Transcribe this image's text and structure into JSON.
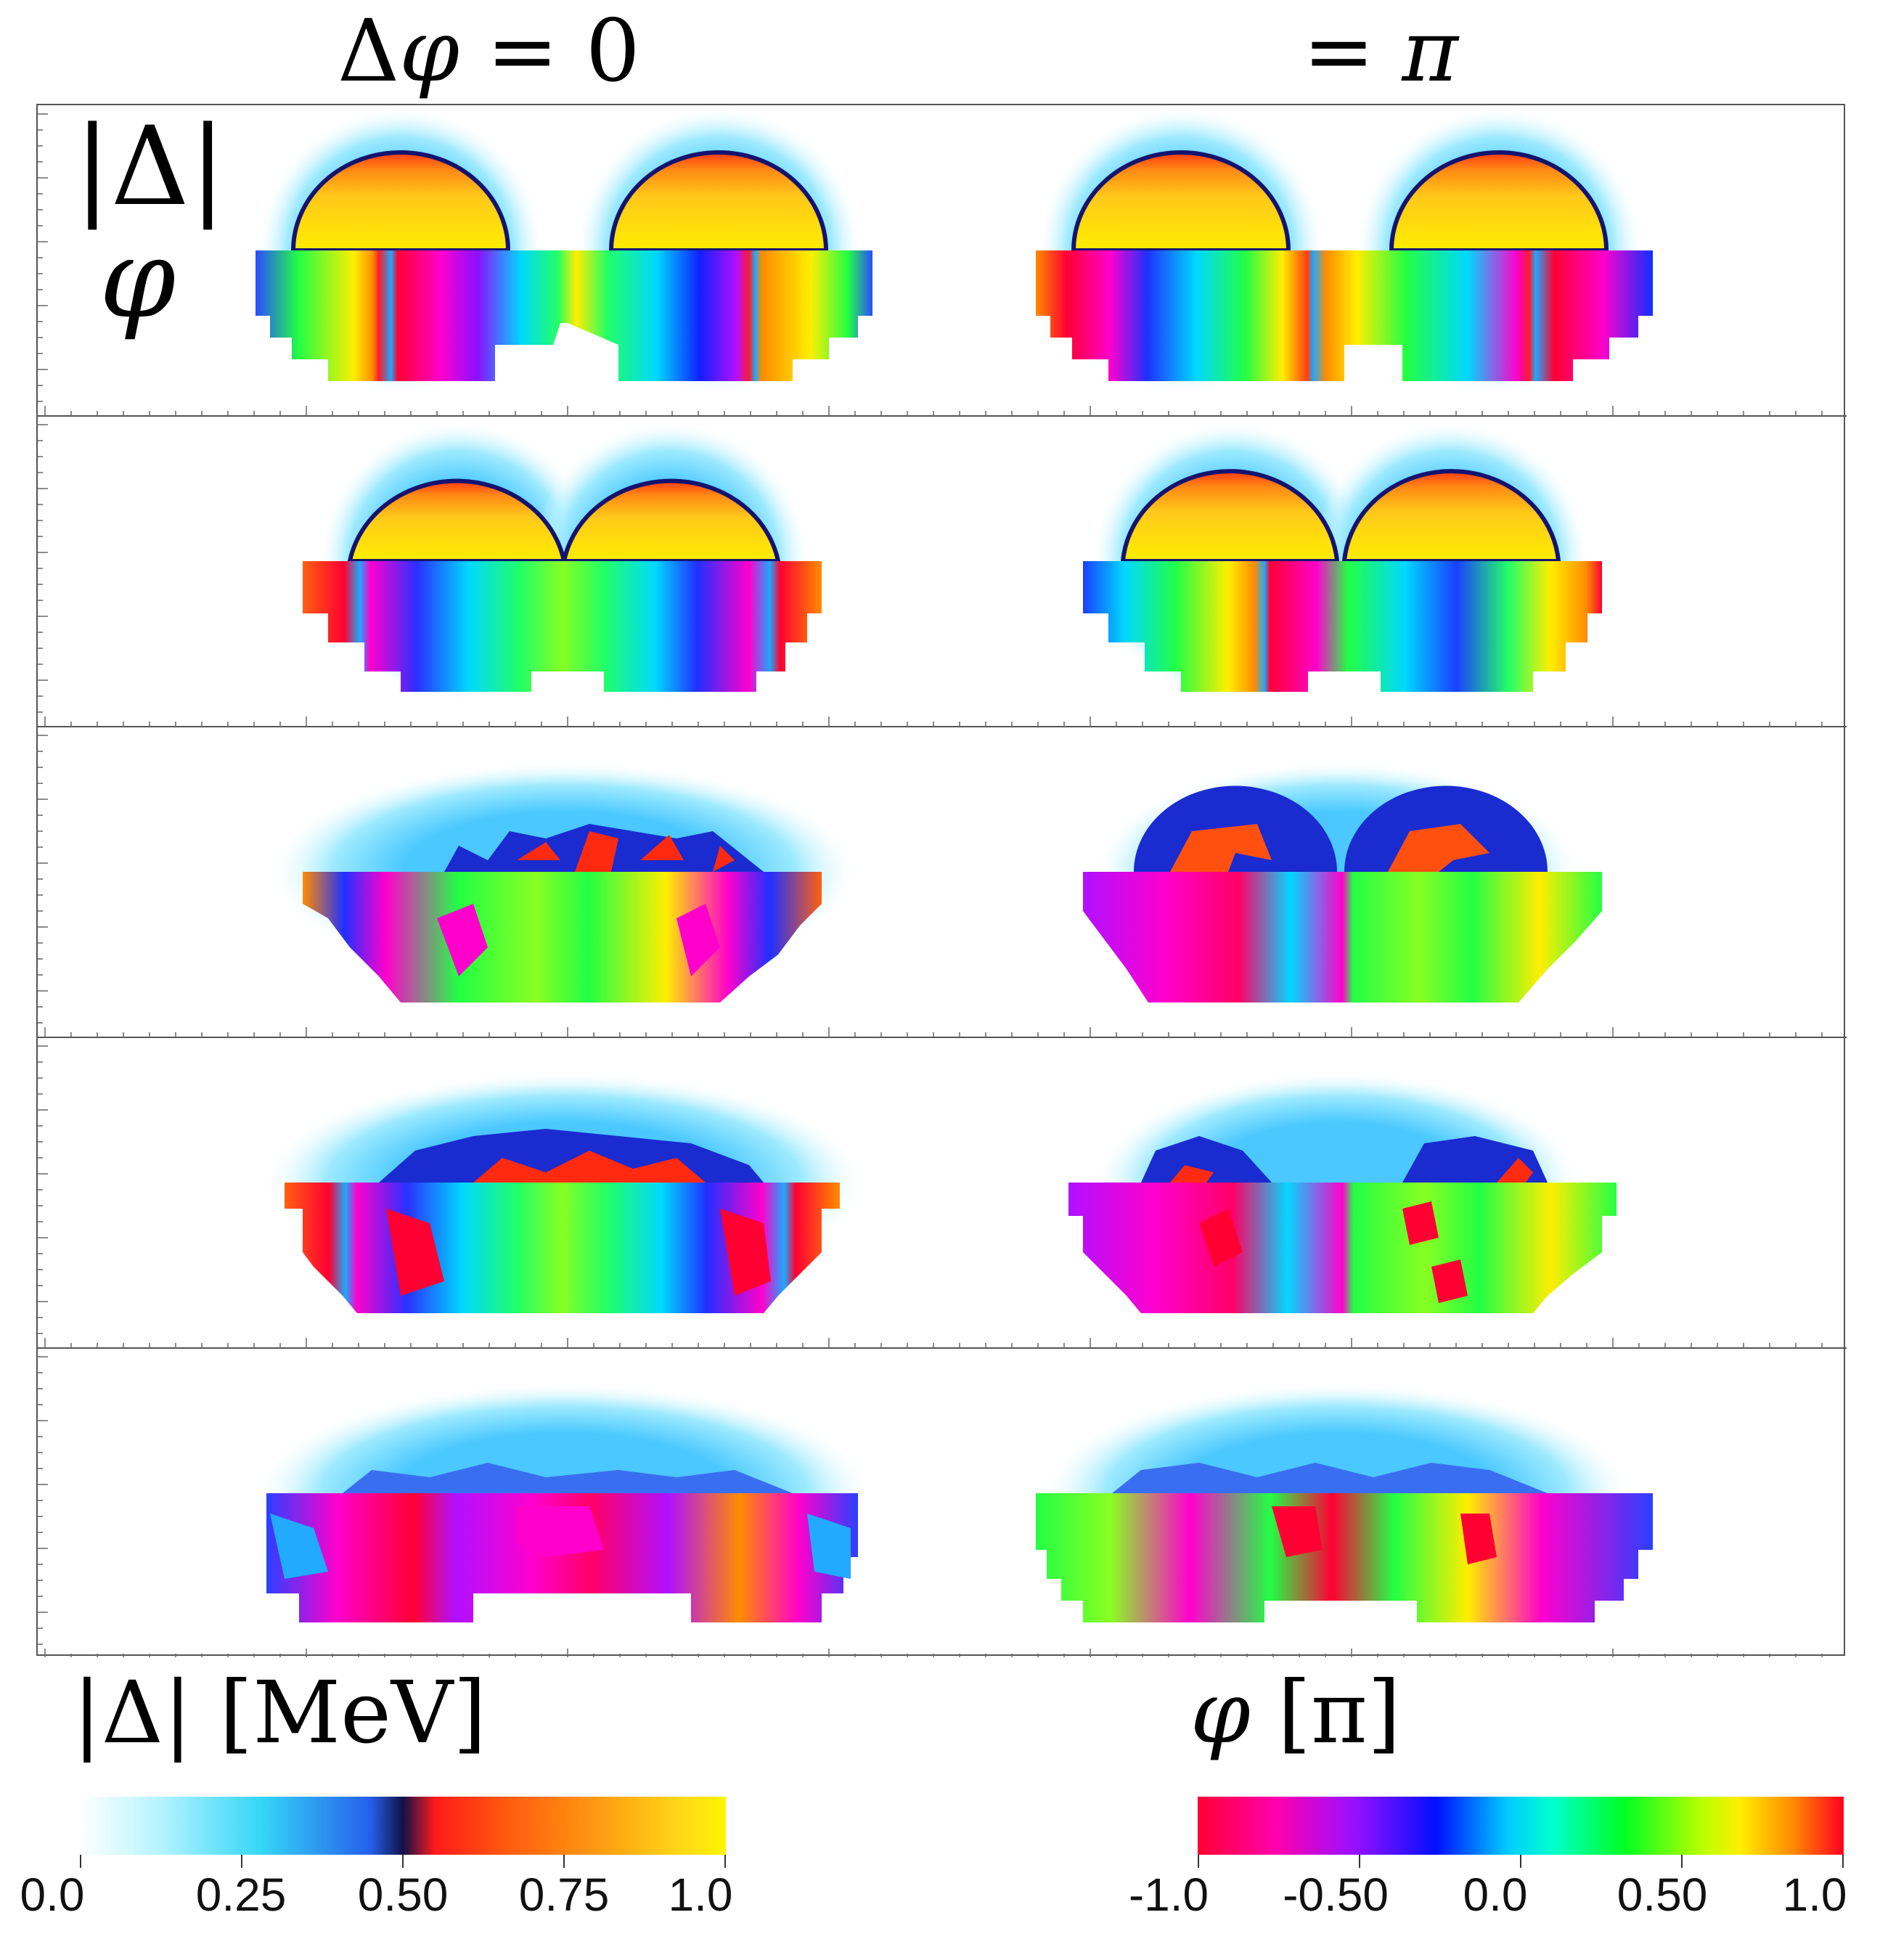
{
  "header": {
    "left_prefix": "Δ",
    "left_phi": "φ",
    "left_suffix": " = 0",
    "right_prefix": "= ",
    "right_pi": "π"
  },
  "row_labels": {
    "magnitude": "|Δ|",
    "phase": "φ"
  },
  "colorbar_magnitude": {
    "title": "|Δ| [MeV]",
    "ticks": [
      "0.0",
      "0.25",
      "0.50",
      "0.75",
      "1.0"
    ]
  },
  "colorbar_phase": {
    "title_phi": "φ",
    "title_unit": " [π]",
    "ticks": [
      "-1.0",
      "-0.50",
      "0.0",
      "0.50",
      "1.0"
    ]
  },
  "colors": {
    "magnitude_core": "#ffe000",
    "magnitude_mid": "#ff8a10",
    "magnitude_rim": "#ff2a10",
    "magnitude_edge": "#1a1a8a",
    "magnitude_halo": "#9eeaff",
    "phase_red": "#ff0033",
    "phase_magenta": "#ff00cc",
    "phase_blue": "#1a2cff",
    "phase_cyan": "#00e0ff",
    "phase_green": "#22ff22",
    "phase_yellow": "#f0ff00",
    "phase_orange": "#ff8c00"
  }
}
